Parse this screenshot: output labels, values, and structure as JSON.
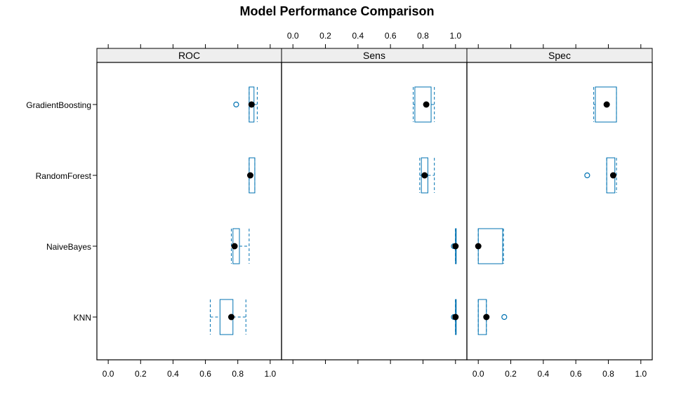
{
  "chart_data": {
    "type": "boxplot",
    "title": "Model Performance Comparison",
    "panels": [
      "ROC",
      "Sens",
      "Spec"
    ],
    "categories": [
      "GradientBoosting",
      "RandomForest",
      "NaiveBayes",
      "KNN"
    ],
    "tick_labels": [
      "0.0",
      "0.2",
      "0.4",
      "0.6",
      "0.8",
      "1.0"
    ],
    "xlim": [
      -0.07,
      1.07
    ],
    "grid": false,
    "colors": {
      "box": "#0072b2",
      "median": "#000000",
      "strip": "#eeeeee",
      "frame": "#000000"
    },
    "boxes": {
      "ROC": [
        {
          "model": "GradientBoosting",
          "whisker_low": 0.87,
          "q1": 0.87,
          "median": 0.885,
          "q3": 0.9,
          "whisker_high": 0.92,
          "outliers": [
            0.79
          ]
        },
        {
          "model": "RandomForest",
          "whisker_low": 0.87,
          "q1": 0.87,
          "median": 0.877,
          "q3": 0.905,
          "whisker_high": 0.905,
          "outliers": []
        },
        {
          "model": "NaiveBayes",
          "whisker_low": 0.76,
          "q1": 0.77,
          "median": 0.78,
          "q3": 0.81,
          "whisker_high": 0.87,
          "outliers": []
        },
        {
          "model": "KNN",
          "whisker_low": 0.63,
          "q1": 0.69,
          "median": 0.76,
          "q3": 0.77,
          "whisker_high": 0.85,
          "outliers": []
        }
      ],
      "Sens": [
        {
          "model": "GradientBoosting",
          "whisker_low": 0.74,
          "q1": 0.75,
          "median": 0.82,
          "q3": 0.85,
          "whisker_high": 0.87,
          "outliers": []
        },
        {
          "model": "RandomForest",
          "whisker_low": 0.78,
          "q1": 0.79,
          "median": 0.81,
          "q3": 0.83,
          "whisker_high": 0.87,
          "outliers": []
        },
        {
          "model": "NaiveBayes",
          "whisker_low": 1.0,
          "q1": 1.0,
          "median": 1.0,
          "q3": 1.0,
          "whisker_high": 1.0,
          "outliers": [
            0.99
          ]
        },
        {
          "model": "KNN",
          "whisker_low": 1.0,
          "q1": 1.0,
          "median": 1.0,
          "q3": 1.0,
          "whisker_high": 1.0,
          "outliers": [
            0.99
          ]
        }
      ],
      "Spec": [
        {
          "model": "GradientBoosting",
          "whisker_low": 0.71,
          "q1": 0.72,
          "median": 0.79,
          "q3": 0.85,
          "whisker_high": 0.85,
          "outliers": []
        },
        {
          "model": "RandomForest",
          "whisker_low": 0.79,
          "q1": 0.79,
          "median": 0.83,
          "q3": 0.84,
          "whisker_high": 0.85,
          "outliers": [
            0.67
          ]
        },
        {
          "model": "NaiveBayes",
          "whisker_low": 0.0,
          "q1": 0.0,
          "median": 0.0,
          "q3": 0.15,
          "whisker_high": 0.155,
          "outliers": []
        },
        {
          "model": "KNN",
          "whisker_low": 0.0,
          "q1": 0.0,
          "median": 0.05,
          "q3": 0.05,
          "whisker_high": 0.05,
          "outliers": [
            0.16
          ]
        }
      ]
    }
  }
}
